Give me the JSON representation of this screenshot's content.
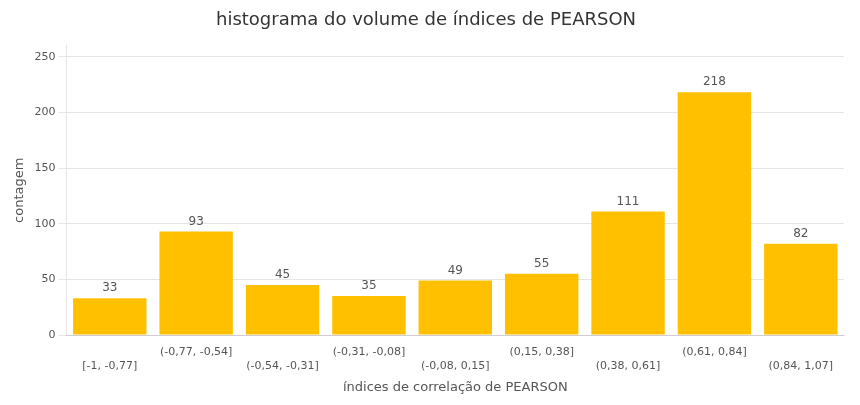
{
  "chart_data": {
    "type": "bar",
    "title": "histograma do volume de índices de PEARSON",
    "xlabel": "índices de correlação de PEARSON",
    "ylabel": "contagem",
    "categories": [
      "[-1, -0,77]",
      "(-0,77, -0,54]",
      "(-0,54, -0,31]",
      "(-0,31, -0,08]",
      "(-0,08, 0,15]",
      "(0,15, 0,38]",
      "(0,38, 0,61]",
      "(0,61, 0,84]",
      "(0,84, 1,07]"
    ],
    "values": [
      33,
      93,
      45,
      35,
      49,
      55,
      111,
      218,
      82
    ],
    "color": "#FFC000",
    "ylim": [
      0,
      260
    ],
    "yticks": [
      0,
      50,
      100,
      150,
      200,
      250
    ],
    "grid": true,
    "data_labels": true
  }
}
